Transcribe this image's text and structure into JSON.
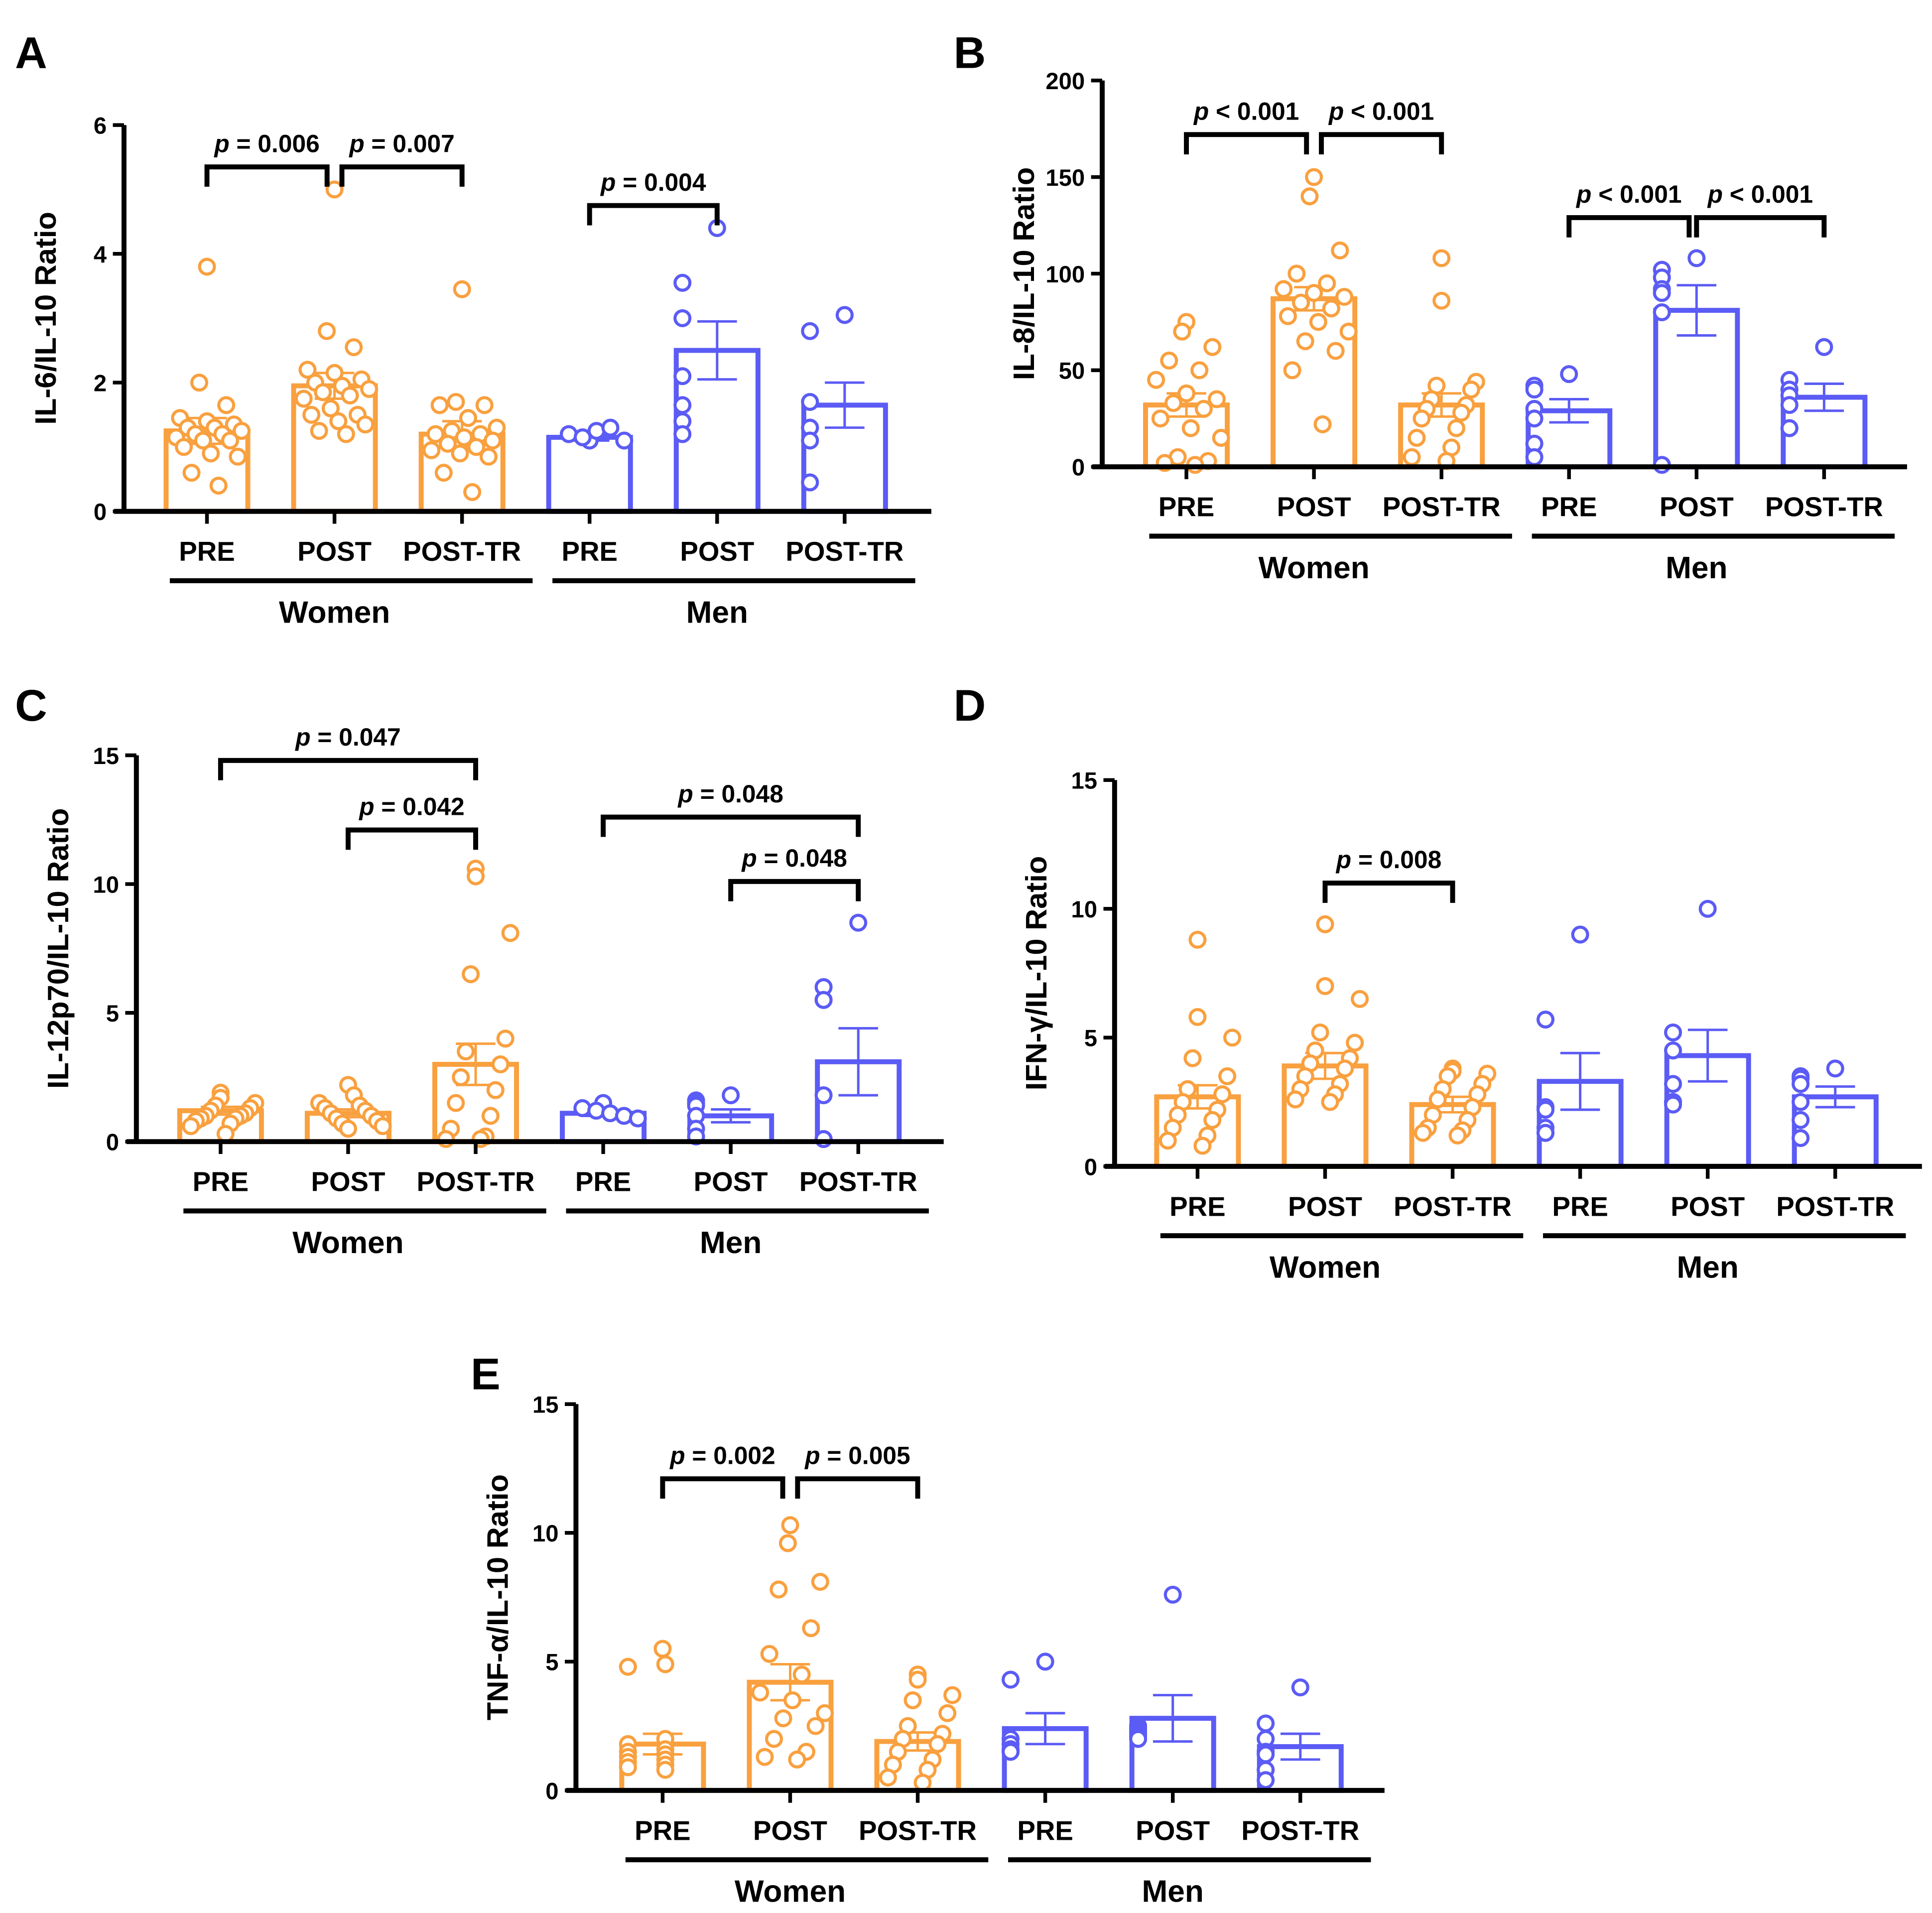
{
  "colors": {
    "women": "#F9A03F",
    "men": "#5B5BF5",
    "axis": "#000000"
  },
  "categories": [
    "PRE",
    "POST",
    "POST-TR",
    "PRE",
    "POST",
    "POST-TR"
  ],
  "group_labels": [
    "Women",
    "Men"
  ],
  "chart_data": [
    {
      "panel": "A",
      "type": "bar",
      "ylabel": "IL-6/IL-10 Ratio",
      "ylim": [
        0,
        6
      ],
      "yticks": [
        0,
        2,
        4,
        6
      ],
      "series": [
        {
          "name": "Women PRE",
          "mean": 1.25,
          "sem": 0.2,
          "points": [
            3.8,
            2.0,
            1.65,
            1.45,
            1.4,
            1.35,
            1.3,
            1.3,
            1.25,
            1.2,
            1.2,
            1.15,
            1.1,
            1.1,
            1.0,
            0.9,
            0.85,
            0.6,
            0.4
          ]
        },
        {
          "name": "Women POST",
          "mean": 1.95,
          "sem": 0.2,
          "points": [
            5.0,
            2.8,
            2.55,
            2.2,
            2.15,
            2.05,
            2.0,
            1.95,
            1.9,
            1.85,
            1.8,
            1.75,
            1.6,
            1.5,
            1.5,
            1.4,
            1.35,
            1.25,
            1.2
          ]
        },
        {
          "name": "Women POST-TR",
          "mean": 1.2,
          "sem": 0.2,
          "points": [
            3.45,
            1.7,
            1.65,
            1.65,
            1.45,
            1.3,
            1.25,
            1.2,
            1.2,
            1.15,
            1.1,
            1.05,
            1.0,
            0.95,
            0.9,
            0.85,
            0.6,
            0.3
          ]
        },
        {
          "name": "Men PRE",
          "mean": 1.15,
          "sem": 0.05,
          "points": [
            1.1,
            1.2,
            1.15,
            1.25,
            1.3,
            1.1
          ]
        },
        {
          "name": "Men POST",
          "mean": 2.5,
          "sem": 0.45,
          "points": [
            4.4,
            3.55,
            3.0,
            2.1,
            1.65,
            1.4,
            1.2
          ]
        },
        {
          "name": "Men POST-TR",
          "mean": 1.65,
          "sem": 0.35,
          "points": [
            3.05,
            2.8,
            1.7,
            1.3,
            1.3,
            1.1,
            0.45
          ]
        }
      ],
      "brackets": [
        {
          "from": 0,
          "to": 1,
          "y": 5.35,
          "label": "p = 0.006"
        },
        {
          "from": 1,
          "to": 2,
          "y": 5.35,
          "label": "p = 0.007"
        },
        {
          "from": 3,
          "to": 4,
          "y": 4.75,
          "label": "p = 0.004"
        }
      ]
    },
    {
      "panel": "B",
      "type": "bar",
      "ylabel": "IL-8/IL-10 Ratio",
      "ylim": [
        0,
        200
      ],
      "yticks": [
        0,
        50,
        100,
        150,
        200
      ],
      "series": [
        {
          "name": "Women PRE",
          "mean": 32,
          "sem": 6,
          "points": [
            75,
            70,
            62,
            55,
            50,
            45,
            38,
            35,
            33,
            30,
            25,
            20,
            15,
            5,
            3,
            2,
            1
          ]
        },
        {
          "name": "Women POST",
          "mean": 87,
          "sem": 6,
          "points": [
            150,
            140,
            112,
            100,
            95,
            92,
            90,
            88,
            85,
            82,
            78,
            75,
            70,
            65,
            60,
            50,
            22
          ]
        },
        {
          "name": "Women POST-TR",
          "mean": 32,
          "sem": 6,
          "points": [
            108,
            86,
            44,
            42,
            40,
            35,
            32,
            30,
            28,
            25,
            20,
            15,
            10,
            5,
            3
          ]
        },
        {
          "name": "Men PRE",
          "mean": 29,
          "sem": 6,
          "points": [
            48,
            42,
            40,
            30,
            25,
            12,
            5
          ]
        },
        {
          "name": "Men POST",
          "mean": 81,
          "sem": 13,
          "points": [
            108,
            102,
            98,
            92,
            90,
            80,
            1
          ]
        },
        {
          "name": "Men POST-TR",
          "mean": 36,
          "sem": 7,
          "points": [
            62,
            45,
            40,
            37,
            32,
            20,
            20
          ]
        }
      ],
      "brackets": [
        {
          "from": 0,
          "to": 1,
          "y": 172,
          "label": "p < 0.001"
        },
        {
          "from": 1,
          "to": 2,
          "y": 172,
          "label": "p < 0.001"
        },
        {
          "from": 3,
          "to": 4,
          "y": 129,
          "label": "p < 0.001"
        },
        {
          "from": 4,
          "to": 5,
          "y": 129,
          "label": "p < 0.001"
        }
      ]
    },
    {
      "panel": "C",
      "type": "bar",
      "ylabel": "IL-12p70/IL-10 Ratio",
      "ylim": [
        0,
        15
      ],
      "yticks": [
        0,
        5,
        10,
        15
      ],
      "series": [
        {
          "name": "Women PRE",
          "mean": 1.2,
          "sem": 0.15,
          "points": [
            1.9,
            1.7,
            1.5,
            1.4,
            1.3,
            1.2,
            1.1,
            1.0,
            1.0,
            0.9,
            0.9,
            0.8,
            0.7,
            0.6,
            0.3
          ]
        },
        {
          "name": "Women POST",
          "mean": 1.1,
          "sem": 0.15,
          "points": [
            2.2,
            1.8,
            1.5,
            1.4,
            1.3,
            1.2,
            1.1,
            1.0,
            0.9,
            0.8,
            0.7,
            0.6,
            0.5
          ]
        },
        {
          "name": "Women POST-TR",
          "mean": 3.0,
          "sem": 0.8,
          "points": [
            10.6,
            10.3,
            8.1,
            6.5,
            4.0,
            3.5,
            3.0,
            2.5,
            2.0,
            1.5,
            1.0,
            0.5,
            0.2,
            0.1,
            0.1
          ]
        },
        {
          "name": "Men PRE",
          "mean": 1.1,
          "sem": 0.1,
          "points": [
            1.5,
            1.3,
            1.2,
            1.1,
            1.0,
            0.9
          ]
        },
        {
          "name": "Men POST",
          "mean": 1.0,
          "sem": 0.25,
          "points": [
            1.8,
            1.6,
            1.5,
            1.4,
            1.0,
            0.5,
            0.2
          ]
        },
        {
          "name": "Men POST-TR",
          "mean": 3.1,
          "sem": 1.3,
          "points": [
            8.5,
            6.0,
            5.5,
            5.5,
            1.8,
            0.1,
            0.1
          ]
        }
      ],
      "brackets": [
        {
          "from": 0,
          "to": 2,
          "y": 14.8,
          "label": "p = 0.047"
        },
        {
          "from": 1,
          "to": 2,
          "y": 12.1,
          "label": "p = 0.042"
        },
        {
          "from": 3,
          "to": 5,
          "y": 12.6,
          "label": "p = 0.048"
        },
        {
          "from": 4,
          "to": 5,
          "y": 10.1,
          "label": "p = 0.048"
        }
      ]
    },
    {
      "panel": "D",
      "type": "bar",
      "ylabel": "IFN-γ/IL-10 Ratio",
      "ylim": [
        0,
        15
      ],
      "yticks": [
        0,
        5,
        10,
        15
      ],
      "series": [
        {
          "name": "Women PRE",
          "mean": 2.7,
          "sem": 0.45,
          "points": [
            8.8,
            5.8,
            5.0,
            4.2,
            3.5,
            3.0,
            2.8,
            2.5,
            2.2,
            2.0,
            1.8,
            1.5,
            1.2,
            1.0,
            0.8
          ]
        },
        {
          "name": "Women POST",
          "mean": 3.9,
          "sem": 0.5,
          "points": [
            9.4,
            7.0,
            6.5,
            5.2,
            4.8,
            4.5,
            4.2,
            4.0,
            3.8,
            3.5,
            3.2,
            3.0,
            2.8,
            2.6,
            2.5
          ]
        },
        {
          "name": "Women POST-TR",
          "mean": 2.4,
          "sem": 0.3,
          "points": [
            3.8,
            3.7,
            3.6,
            3.5,
            3.2,
            3.0,
            2.8,
            2.6,
            2.3,
            2.0,
            1.8,
            1.5,
            1.4,
            1.3,
            1.2
          ]
        },
        {
          "name": "Men PRE",
          "mean": 3.3,
          "sem": 1.1,
          "points": [
            9.0,
            5.7,
            2.3,
            2.2,
            1.5,
            1.3,
            1.3
          ]
        },
        {
          "name": "Men POST",
          "mean": 4.3,
          "sem": 1.0,
          "points": [
            10.0,
            5.2,
            4.5,
            3.2,
            2.5,
            2.5,
            2.4
          ]
        },
        {
          "name": "Men POST-TR",
          "mean": 2.7,
          "sem": 0.4,
          "points": [
            3.8,
            3.5,
            3.4,
            3.2,
            2.5,
            1.8,
            1.1
          ]
        }
      ],
      "brackets": [
        {
          "from": 1,
          "to": 2,
          "y": 11.0,
          "label": "p = 0.008"
        }
      ]
    },
    {
      "panel": "E",
      "type": "bar",
      "ylabel": "TNF-α/IL-10 Ratio",
      "ylim": [
        0,
        15
      ],
      "yticks": [
        0,
        5,
        10,
        15
      ],
      "series": [
        {
          "name": "Women PRE",
          "mean": 1.8,
          "sem": 0.4,
          "points": [
            5.5,
            4.9,
            4.8,
            2.0,
            1.8,
            1.6,
            1.5,
            1.4,
            1.3,
            1.2,
            1.1,
            1.0,
            0.9,
            0.8
          ]
        },
        {
          "name": "Women POST",
          "mean": 4.2,
          "sem": 0.7,
          "points": [
            10.3,
            9.6,
            8.1,
            7.8,
            6.3,
            5.3,
            4.5,
            3.8,
            3.5,
            3.0,
            2.8,
            2.5,
            2.0,
            1.5,
            1.3,
            1.2
          ]
        },
        {
          "name": "Women POST-TR",
          "mean": 1.9,
          "sem": 0.35,
          "points": [
            4.5,
            4.3,
            3.7,
            3.5,
            3.0,
            2.5,
            2.2,
            2.0,
            1.8,
            1.5,
            1.2,
            1.0,
            0.8,
            0.5,
            0.3
          ]
        },
        {
          "name": "Men PRE",
          "mean": 2.4,
          "sem": 0.6,
          "points": [
            5.0,
            4.3,
            2.0,
            1.8,
            1.6,
            1.5,
            1.5
          ]
        },
        {
          "name": "Men POST",
          "mean": 2.8,
          "sem": 0.9,
          "points": [
            7.6,
            2.5,
            2.4,
            2.3,
            2.2,
            2.1,
            2.0
          ]
        },
        {
          "name": "Men POST-TR",
          "mean": 1.7,
          "sem": 0.5,
          "points": [
            4.0,
            2.6,
            2.0,
            1.5,
            1.4,
            0.8,
            0.4
          ]
        }
      ],
      "brackets": [
        {
          "from": 0,
          "to": 1,
          "y": 12.1,
          "label": "p = 0.002"
        },
        {
          "from": 1,
          "to": 2,
          "y": 12.1,
          "label": "p = 0.005"
        }
      ]
    }
  ]
}
